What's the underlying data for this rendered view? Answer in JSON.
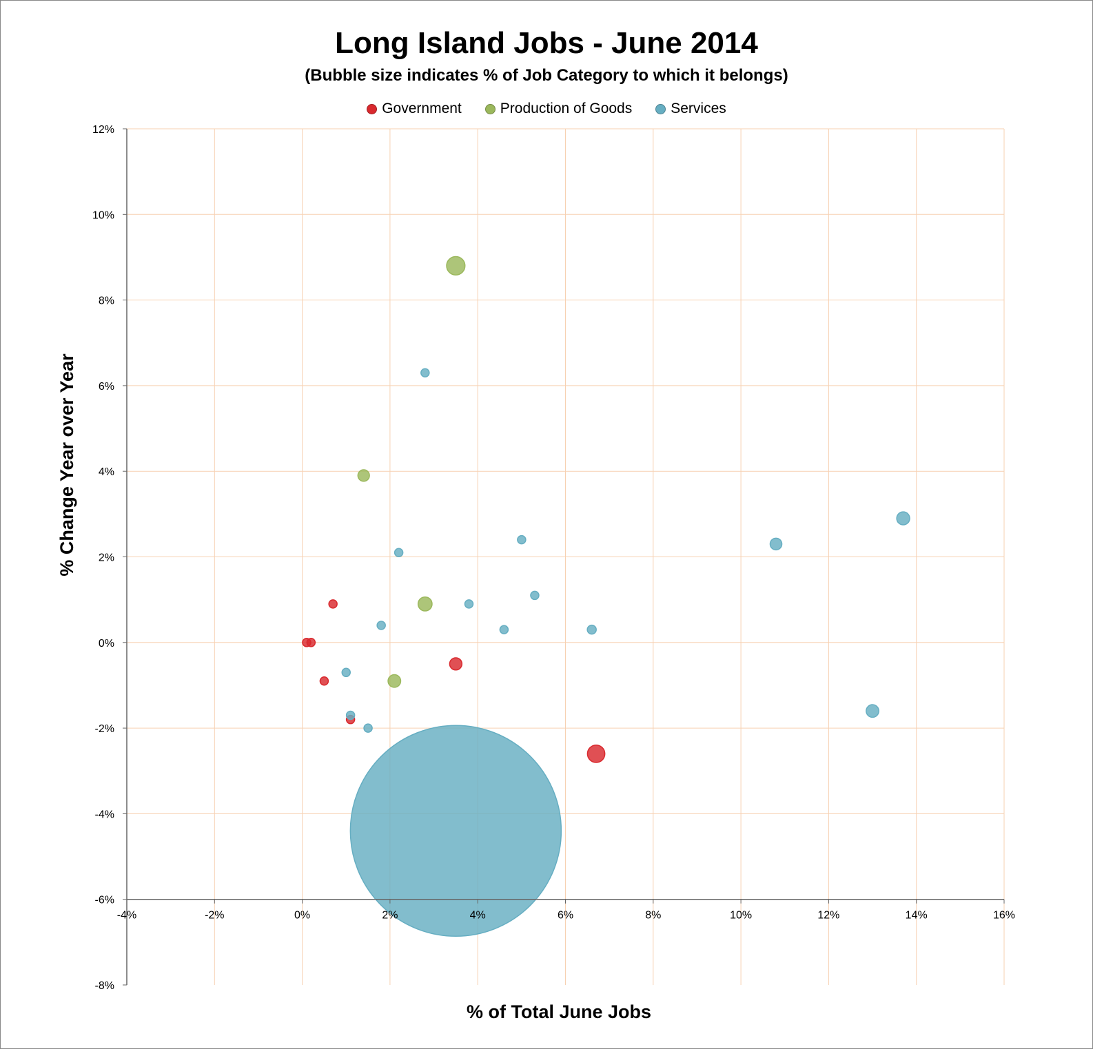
{
  "chart_data": {
    "type": "bubble",
    "title": "Long Island Jobs - June 2014",
    "subtitle": "(Bubble size indicates % of Job Category to which it belongs)",
    "xlabel": "% of Total June Jobs",
    "ylabel": "% Change Year over Year",
    "xlim": [
      -4,
      16
    ],
    "ylim": [
      -8,
      12
    ],
    "x_ticks": [
      "-4%",
      "-2%",
      "0%",
      "2%",
      "4%",
      "6%",
      "8%",
      "10%",
      "12%",
      "14%",
      "16%"
    ],
    "y_ticks": [
      "-8%",
      "-6%",
      "-4%",
      "-2%",
      "0%",
      "2%",
      "4%",
      "6%",
      "8%",
      "10%",
      "12%"
    ],
    "grid": true,
    "legend_position": "top",
    "series": [
      {
        "name": "Government",
        "color": "#d9292e",
        "points": [
          {
            "x": 6.7,
            "y": -2.6,
            "size": 34
          },
          {
            "x": 3.5,
            "y": -0.5,
            "size": 17
          },
          {
            "x": 0.7,
            "y": 0.9,
            "size": 3.5
          },
          {
            "x": 1.1,
            "y": -1.8,
            "size": 3.2
          },
          {
            "x": 0.5,
            "y": -0.9,
            "size": 3.2
          },
          {
            "x": 0.2,
            "y": 0.0,
            "size": 0.25
          },
          {
            "x": 0.1,
            "y": 0.0,
            "size": 0.15
          }
        ]
      },
      {
        "name": "Production of Goods",
        "color": "#9bb85c",
        "points": [
          {
            "x": 3.5,
            "y": 8.8,
            "size": 38
          },
          {
            "x": 2.8,
            "y": 0.9,
            "size": 22
          },
          {
            "x": 2.1,
            "y": -0.9,
            "size": 18
          },
          {
            "x": 1.4,
            "y": 3.9,
            "size": 15
          }
        ]
      },
      {
        "name": "Services",
        "color": "#66aec2",
        "points": [
          {
            "x": 13.7,
            "y": 2.9,
            "size": 19
          },
          {
            "x": 13.0,
            "y": -1.6,
            "size": 18
          },
          {
            "x": 10.8,
            "y": 2.3,
            "size": 15.5
          },
          {
            "x": 6.6,
            "y": 0.3,
            "size": 9
          },
          {
            "x": 5.3,
            "y": 1.1,
            "size": 7.3
          },
          {
            "x": 5.0,
            "y": 2.4,
            "size": 6.8
          },
          {
            "x": 4.6,
            "y": 0.3,
            "size": 6.3
          },
          {
            "x": 3.8,
            "y": 0.9,
            "size": 5.5
          },
          {
            "x": 3.5,
            "y": -4.4,
            "size": 4990
          },
          {
            "x": 2.8,
            "y": 6.3,
            "size": 3.9
          },
          {
            "x": 2.2,
            "y": 2.1,
            "size": 3.2
          },
          {
            "x": 1.8,
            "y": 0.4,
            "size": 2.5
          },
          {
            "x": 1.5,
            "y": -2.0,
            "size": 2.2
          },
          {
            "x": 1.1,
            "y": -1.7,
            "size": 1.6
          },
          {
            "x": 1.0,
            "y": -0.7,
            "size": 1.5
          }
        ]
      }
    ]
  }
}
